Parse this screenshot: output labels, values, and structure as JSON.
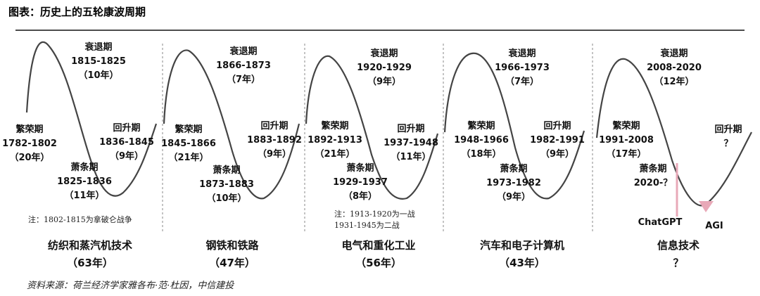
{
  "title": "图表：历史上的五轮康波周期",
  "source": "资料来源：荷兰经济学家雅各布·范·杜因，中信建投",
  "colors": {
    "curve": "#444444",
    "highlight": "#e8a9b8",
    "line": "#111111"
  },
  "waves": [
    {
      "prosperity": [
        "繁荣期",
        "1782-1802",
        "（20年）"
      ],
      "recession": [
        "衰退期",
        "1815-1825",
        "（10年）"
      ],
      "depression": [
        "萧条期",
        "1825-1836",
        "（11年）"
      ],
      "recovery": [
        "回升期",
        "1836-1845",
        "（9年）"
      ],
      "note": [
        "注：1802-1815为拿破仑战争"
      ],
      "tech": "纺织和蒸汽机技术",
      "years": "（63年）"
    },
    {
      "prosperity": [
        "繁荣期",
        "1845-1866",
        "（21年）"
      ],
      "recession": [
        "衰退期",
        "1866-1873",
        "（7年）"
      ],
      "depression": [
        "萧条期",
        "1873-1883",
        "（10年）"
      ],
      "recovery": [
        "回升期",
        "1883-1892",
        "（9年）"
      ],
      "tech": "钢铁和铁路",
      "years": "（47年）"
    },
    {
      "prosperity": [
        "繁荣期",
        "1892-1913",
        "（21年）"
      ],
      "recession": [
        "衰退期",
        "1920-1929",
        "（9年）"
      ],
      "depression": [
        "萧条期",
        "1929-1937",
        "（8年）"
      ],
      "recovery": [
        "回升期",
        "1937-1948",
        "（11年）"
      ],
      "note": [
        "注：1913-1920为一战",
        "1931-1945为二战"
      ],
      "tech": "电气和重化工业",
      "years": "（56年）"
    },
    {
      "prosperity": [
        "繁荣期",
        "1948-1966",
        "（18年）"
      ],
      "recession": [
        "衰退期",
        "1966-1973",
        "（7年）"
      ],
      "depression": [
        "萧条期",
        "1973-1982",
        "（9年）"
      ],
      "recovery": [
        "回升期",
        "1982-1991",
        "（9年）"
      ],
      "tech": "汽车和电子计算机",
      "years": "（43年）"
    },
    {
      "prosperity": [
        "繁荣期",
        "1991-2008",
        "（17年）"
      ],
      "recession": [
        "衰退期",
        "2008-2020",
        "（12年）"
      ],
      "depression": [
        "萧条期",
        "2020-？"
      ],
      "recovery": [
        "回升期",
        "？"
      ],
      "markers": [
        "ChatGPT",
        "AGI"
      ],
      "tech": "信息技术",
      "years": "？"
    }
  ]
}
